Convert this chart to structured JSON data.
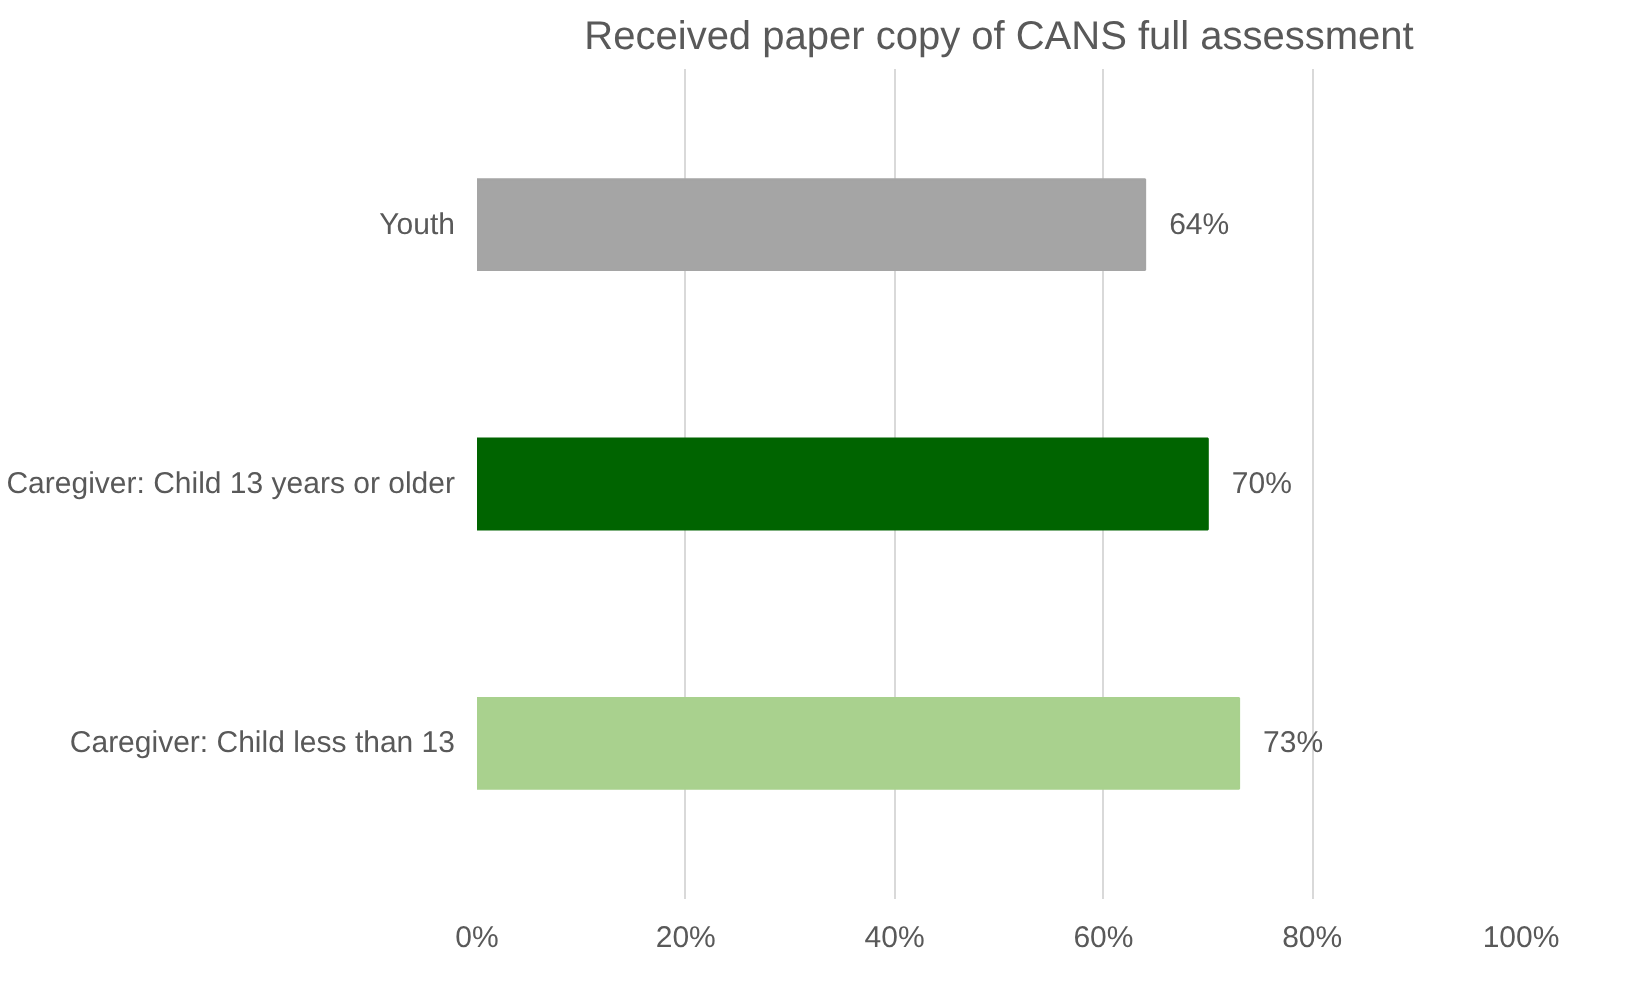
{
  "chart_data": {
    "type": "bar",
    "orientation": "horizontal",
    "title": "Received paper copy of CANS full assessment",
    "categories": [
      "Youth",
      "Caregiver: Child 13 years or older",
      "Caregiver: Child less than 13"
    ],
    "values": [
      64,
      70,
      73
    ],
    "colors": [
      "#a5a5a5",
      "#006400",
      "#a9d18e"
    ],
    "value_labels": [
      "64%",
      "70%",
      "73%"
    ],
    "xlim": [
      0,
      100
    ],
    "xticks": [
      {
        "value": 0,
        "label": "0%"
      },
      {
        "value": 20,
        "label": "20%"
      },
      {
        "value": 40,
        "label": "40%"
      },
      {
        "value": 60,
        "label": "60%"
      },
      {
        "value": 80,
        "label": "80%"
      },
      {
        "value": 100,
        "label": "100%"
      }
    ],
    "grid": "x"
  }
}
